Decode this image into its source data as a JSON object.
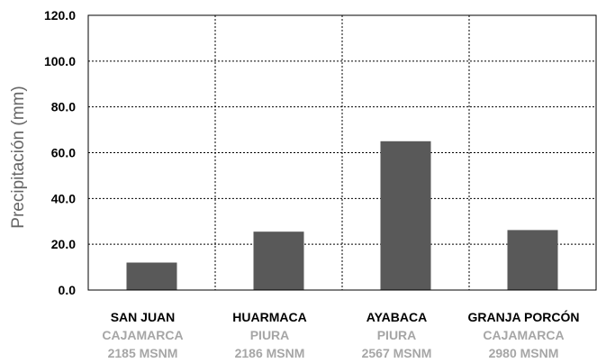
{
  "chart_data": {
    "type": "bar",
    "categories": [
      {
        "name": "SAN JUAN",
        "region": "CAJAMARCA",
        "altitude": "2185 MSNM"
      },
      {
        "name": "HUARMACA",
        "region": "PIURA",
        "altitude": "2186 MSNM"
      },
      {
        "name": "AYABACA",
        "region": "PIURA",
        "altitude": "2567 MSNM"
      },
      {
        "name": "GRANJA PORCÓN",
        "region": "CAJAMARCA",
        "altitude": "2980 MSNM"
      }
    ],
    "values": [
      12.0,
      25.5,
      65.0,
      26.2
    ],
    "title": "",
    "xlabel": "",
    "ylabel": "Precipitación (mm)",
    "ylim": [
      0,
      120
    ],
    "yticks": [
      "0.0",
      "20.0",
      "40.0",
      "60.0",
      "80.0",
      "100.0",
      "120.0"
    ],
    "grid": true,
    "bar_color": "#595959"
  }
}
